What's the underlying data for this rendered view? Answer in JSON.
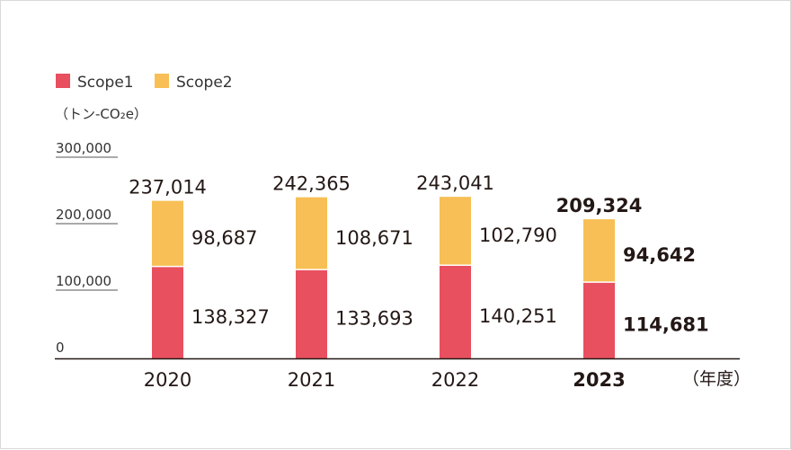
{
  "chart_data": {
    "type": "bar",
    "stacked": true,
    "categories": [
      "2020",
      "2021",
      "2022",
      "2023"
    ],
    "highlight_category": "2023",
    "series": [
      {
        "name": "Scope1",
        "color": "#e8505f",
        "values": [
          138327,
          133693,
          140251,
          114681
        ],
        "labels": [
          "138,327",
          "133,693",
          "140,251",
          "114,681"
        ]
      },
      {
        "name": "Scope2",
        "color": "#f7bf55",
        "values": [
          98687,
          108671,
          102790,
          94642
        ],
        "labels": [
          "98,687",
          "108,671",
          "102,790",
          "94,642"
        ]
      }
    ],
    "totals": [
      237014,
      242365,
      243041,
      209324
    ],
    "total_labels": [
      "237,014",
      "242,365",
      "243,041",
      "209,324"
    ],
    "yunit": "（トン-CO₂e）",
    "xunit": "（年度）",
    "ylim": [
      0,
      300000
    ],
    "yticks": [
      0,
      100000,
      200000,
      300000
    ],
    "ytick_labels": [
      "0",
      "100,000",
      "200,000",
      "300,000"
    ],
    "grid": false,
    "legend_position": "top-left"
  }
}
